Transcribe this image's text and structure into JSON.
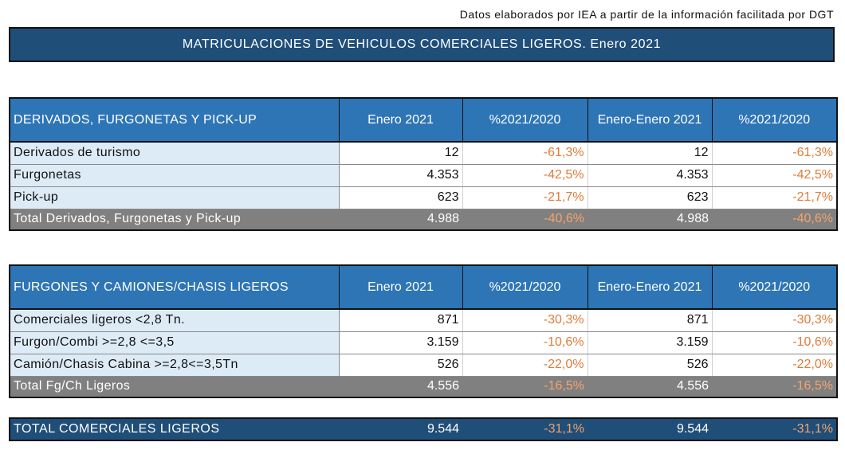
{
  "source": "Datos elaborados por IEA a partir de la información facilitada por DGT",
  "title": "MATRICULACIONES DE VEHICULOS COMERCIALES LIGEROS. Enero 2021",
  "colors": {
    "header_blue": "#2e75b6",
    "title_navy": "#1f4e79",
    "total_grey": "#808080",
    "pct_orange": "#e07b39",
    "label_bg": "#ddebf7"
  },
  "table1": {
    "header": [
      "DERIVADOS, FURGONETAS Y PICK-UP",
      "Enero 2021",
      "%2021/2020",
      "Enero-Enero 2021",
      "%2021/2020"
    ],
    "rows": [
      [
        "Derivados de turismo",
        "12",
        "-61,3%",
        "12",
        "-61,3%"
      ],
      [
        "Furgonetas",
        "4.353",
        "-42,5%",
        "4.353",
        "-42,5%"
      ],
      [
        "Pick-up",
        "623",
        "-21,7%",
        "623",
        "-21,7%"
      ]
    ],
    "total": [
      "Total Derivados, Furgonetas y Pick-up",
      "4.988",
      "-40,6%",
      "4.988",
      "-40,6%"
    ]
  },
  "table2": {
    "header": [
      "FURGONES Y CAMIONES/CHASIS LIGEROS",
      "Enero 2021",
      "%2021/2020",
      "Enero-Enero 2021",
      "%2021/2020"
    ],
    "rows": [
      [
        "Comerciales ligeros <2,8 Tn.",
        "871",
        "-30,3%",
        "871",
        "-30,3%"
      ],
      [
        "Furgon/Combi >=2,8 <=3,5",
        "3.159",
        "-10,6%",
        "3.159",
        "-10,6%"
      ],
      [
        "Camión/Chasis Cabina >=2,8<=3,5Tn",
        "526",
        "-22,0%",
        "526",
        "-22,0%"
      ]
    ],
    "total": [
      "Total Fg/Ch Ligeros",
      "4.556",
      "-16,5%",
      "4.556",
      "-16,5%"
    ]
  },
  "grand_total": [
    "TOTAL COMERCIALES LIGEROS",
    "9.544",
    "-31,1%",
    "9.544",
    "-31,1%"
  ]
}
